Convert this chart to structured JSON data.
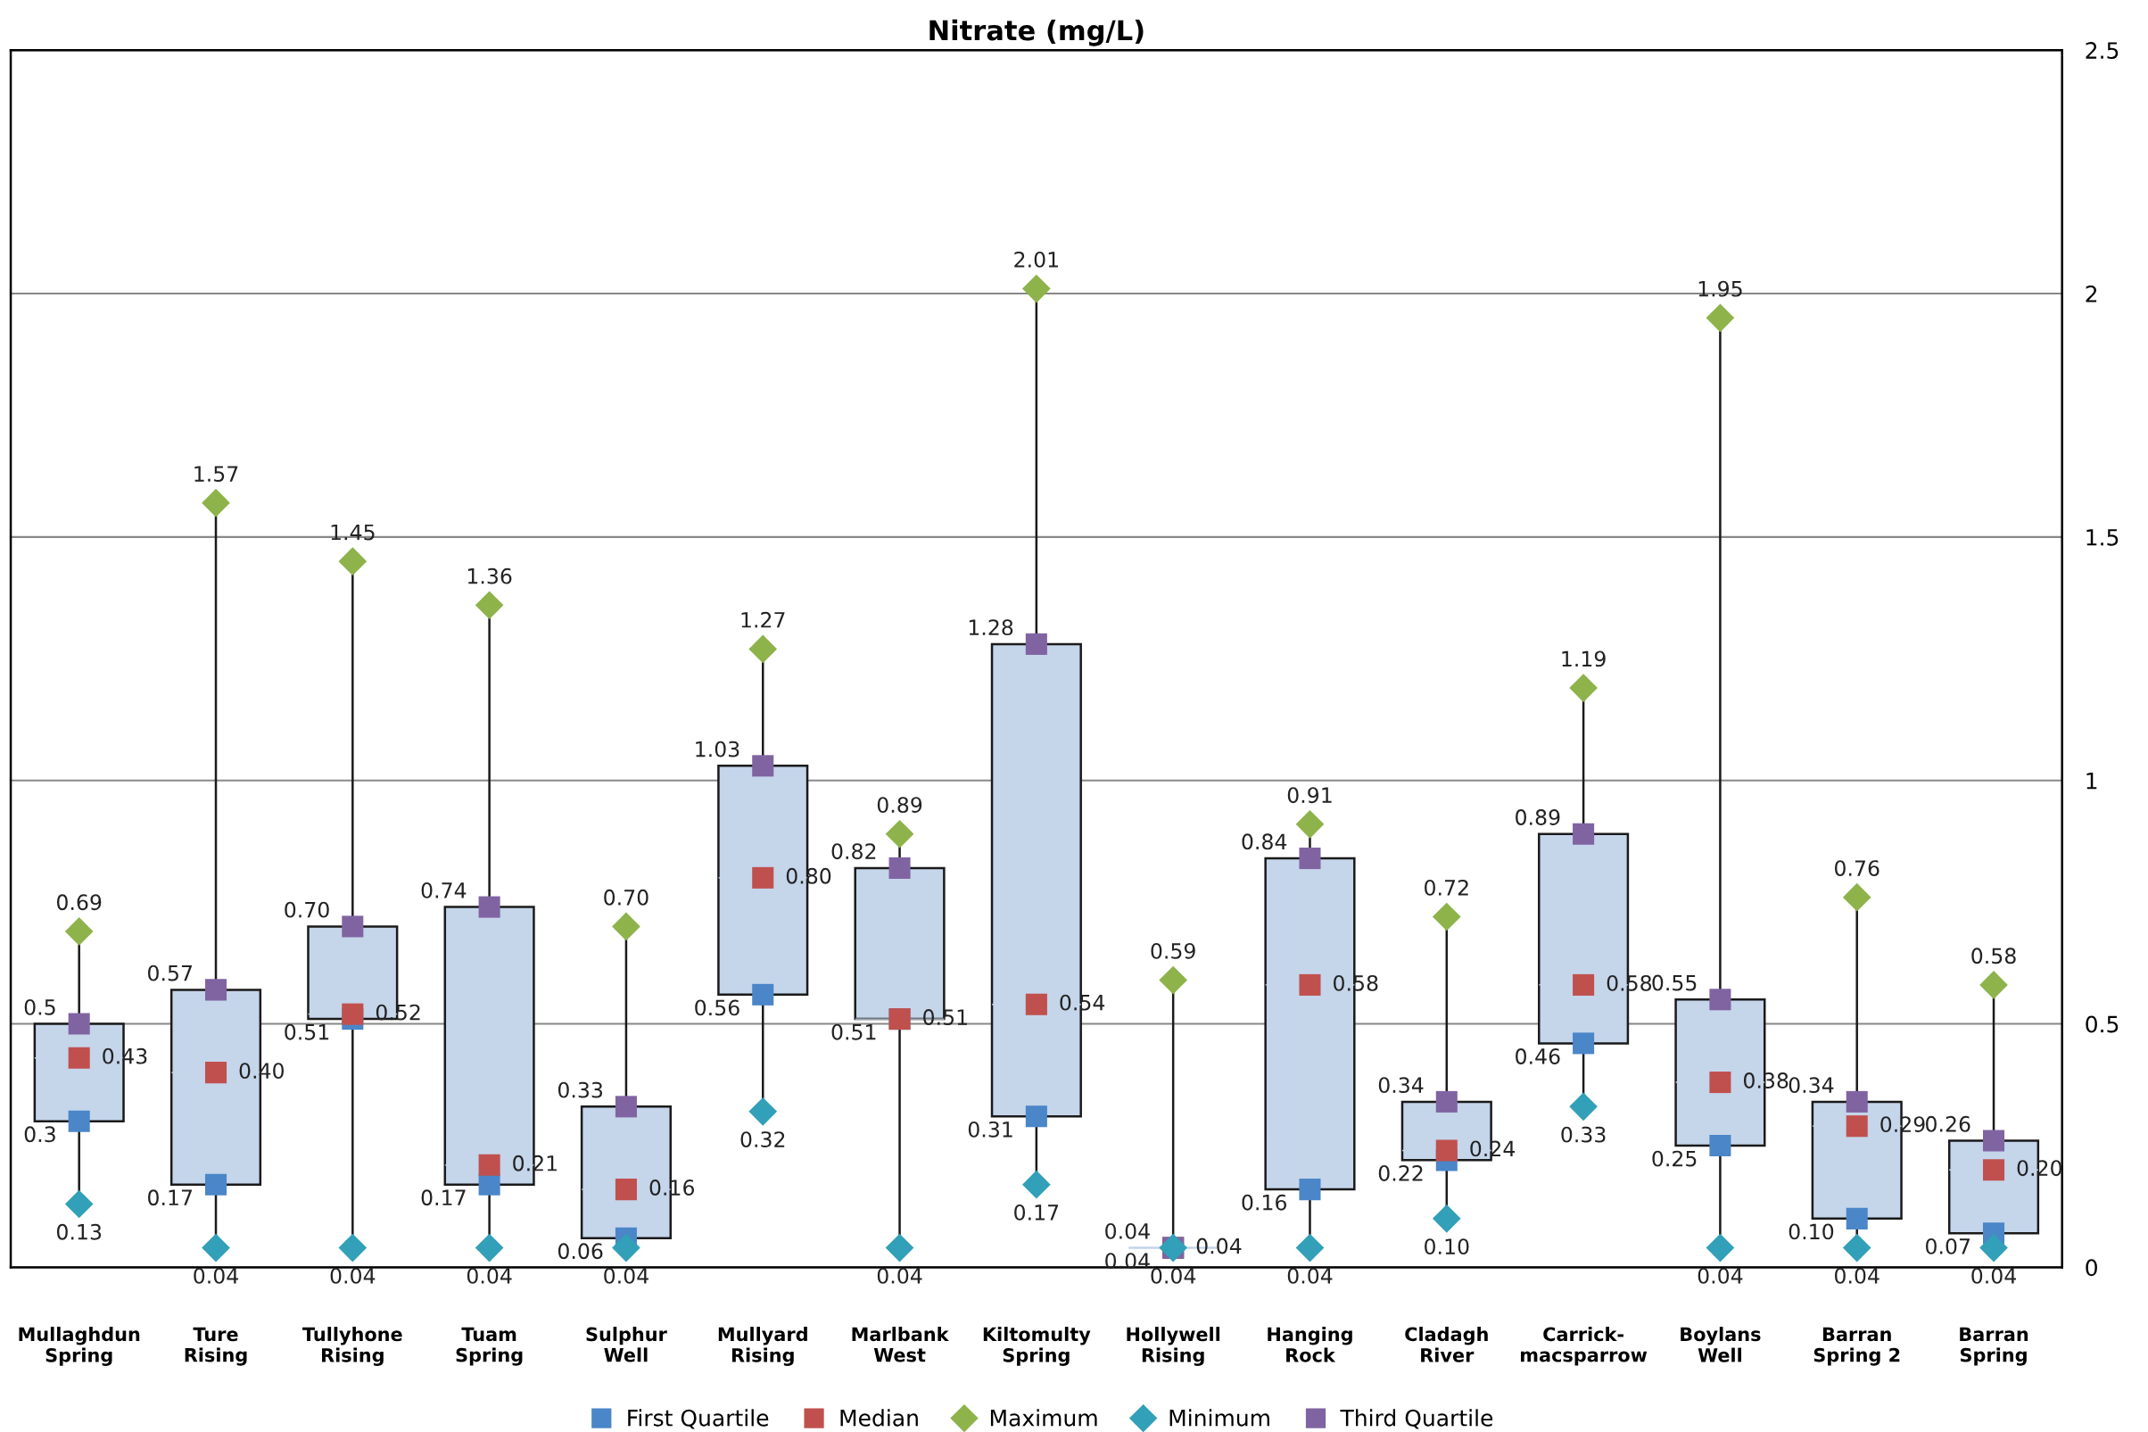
{
  "chart_data": {
    "type": "box",
    "title": "Nitrate (mg/L)",
    "categories": [
      "Mullaghdun\nSpring",
      "Ture\nRising",
      "Tullyhone\nRising",
      "Tuam\nSpring",
      "Sulphur\nWell",
      "Mullyard\nRising",
      "Marlbank\nWest",
      "Kiltomulty\nSpring",
      "Hollywell\nRising",
      "Hanging\nRock",
      "Cladagh\nRiver",
      "Carrick-\nmacsparrow",
      "Boylans\nWell",
      "Barran\nSpring 2",
      "Barran\nSpring"
    ],
    "boxes": [
      {
        "low": 0.13,
        "q1": 0.3,
        "median": 0.43,
        "q3": 0.5,
        "high": 0.69
      },
      {
        "low": 0.04,
        "q1": 0.17,
        "median": 0.4,
        "q3": 0.57,
        "high": 1.57
      },
      {
        "low": 0.04,
        "q1": 0.51,
        "median": 0.52,
        "q3": 0.7,
        "high": 1.45
      },
      {
        "low": 0.04,
        "q1": 0.17,
        "median": 0.21,
        "q3": 0.74,
        "high": 1.36
      },
      {
        "low": 0.04,
        "q1": 0.06,
        "median": 0.16,
        "q3": 0.33,
        "high": 0.7
      },
      {
        "low": 0.32,
        "q1": 0.56,
        "median": 0.8,
        "q3": 1.03,
        "high": 1.27
      },
      {
        "low": 0.04,
        "q1": 0.51,
        "median": 0.51,
        "q3": 0.82,
        "high": 0.89
      },
      {
        "low": 0.17,
        "q1": 0.31,
        "median": 0.54,
        "q3": 1.28,
        "high": 2.01
      },
      {
        "low": 0.04,
        "q1": 0.04,
        "median": 0.04,
        "q3": 0.04,
        "high": 0.59
      },
      {
        "low": 0.04,
        "q1": 0.16,
        "median": 0.58,
        "q3": 0.84,
        "high": 0.91
      },
      {
        "low": 0.1,
        "q1": 0.22,
        "median": 0.24,
        "q3": 0.34,
        "high": 0.72
      },
      {
        "low": 0.33,
        "q1": 0.46,
        "median": 0.58,
        "q3": 0.89,
        "high": 1.19
      },
      {
        "low": 0.04,
        "q1": 0.25,
        "median": 0.38,
        "q3": 0.55,
        "high": 1.95
      },
      {
        "low": 0.04,
        "q1": 0.1,
        "median": 0.29,
        "q3": 0.34,
        "high": 0.76
      },
      {
        "low": 0.04,
        "q1": 0.07,
        "median": 0.2,
        "q3": 0.26,
        "high": 0.58
      }
    ],
    "series": [
      {
        "name": "First Quartile",
        "type": "scatter",
        "marker": "square",
        "color": "#4a86c8",
        "values": [
          0.3,
          0.17,
          0.51,
          0.17,
          0.06,
          0.56,
          0.51,
          0.31,
          0.04,
          0.16,
          0.22,
          0.46,
          0.25,
          0.1,
          0.07
        ],
        "value_labels": [
          "0.3",
          "0.17",
          "0.51",
          "0.17",
          "0.06",
          "0.56",
          "0.51",
          "0.31",
          "0.04",
          "0.16",
          "0.22",
          "0.46",
          "0.25",
          "0.10",
          "0.07"
        ]
      },
      {
        "name": "Median",
        "type": "scatter",
        "marker": "square",
        "color": "#c0504d",
        "values": [
          0.43,
          0.4,
          0.52,
          0.21,
          0.16,
          0.8,
          0.51,
          0.54,
          0.04,
          0.58,
          0.24,
          0.58,
          0.38,
          0.29,
          0.2
        ],
        "value_labels": [
          "0.43",
          "0.40",
          "0.52",
          "0.21",
          "0.16",
          "0.80",
          "0.51",
          "0.54",
          "0.04",
          "0.58",
          "0.24",
          "0.58",
          "0.38",
          "0.29",
          "0.20"
        ]
      },
      {
        "name": "Maximum",
        "type": "scatter",
        "marker": "diamond",
        "color": "#8db34a",
        "values": [
          0.69,
          1.57,
          1.45,
          1.36,
          0.7,
          1.27,
          0.89,
          2.01,
          0.59,
          0.91,
          0.72,
          1.19,
          1.95,
          0.76,
          0.58
        ],
        "value_labels": [
          "0.69",
          "1.57",
          "1.45",
          "1.36",
          "0.70",
          "1.27",
          "0.89",
          "2.01",
          "0.59",
          "0.91",
          "0.72",
          "1.19",
          "1.95",
          "0.76",
          "0.58"
        ]
      },
      {
        "name": "Minimum",
        "type": "scatter",
        "marker": "diamond",
        "color": "#31a0b8",
        "values": [
          0.13,
          0.04,
          0.04,
          0.04,
          0.04,
          0.32,
          0.04,
          0.17,
          0.04,
          0.04,
          0.1,
          0.33,
          0.04,
          0.04,
          0.04
        ],
        "value_labels": [
          "0.13",
          "0.04",
          "0.04",
          "0.04",
          "0.04",
          "0.32",
          "0.04",
          "0.17",
          "0.04",
          "0.04",
          "0.10",
          "0.33",
          "0.04",
          "0.04",
          "0.04"
        ]
      },
      {
        "name": "Third Quartile",
        "type": "scatter",
        "marker": "square",
        "color": "#8064a2",
        "values": [
          0.5,
          0.57,
          0.7,
          0.74,
          0.33,
          1.03,
          0.82,
          1.28,
          0.04,
          0.84,
          0.34,
          0.89,
          0.55,
          0.34,
          0.26
        ],
        "value_labels": [
          "0.5",
          "0.57",
          "0.70",
          "0.74",
          "0.33",
          "1.03",
          "0.82",
          "1.28",
          "0.04",
          "0.84",
          "0.34",
          "0.89",
          "0.55",
          "0.34",
          "0.26"
        ]
      }
    ],
    "color": "#c5d5ea",
    "ylim": [
      0,
      2.5
    ],
    "yticks": [
      0,
      0.5,
      1,
      1.5,
      2,
      2.5
    ],
    "grid": "y",
    "legend": "bottom"
  }
}
